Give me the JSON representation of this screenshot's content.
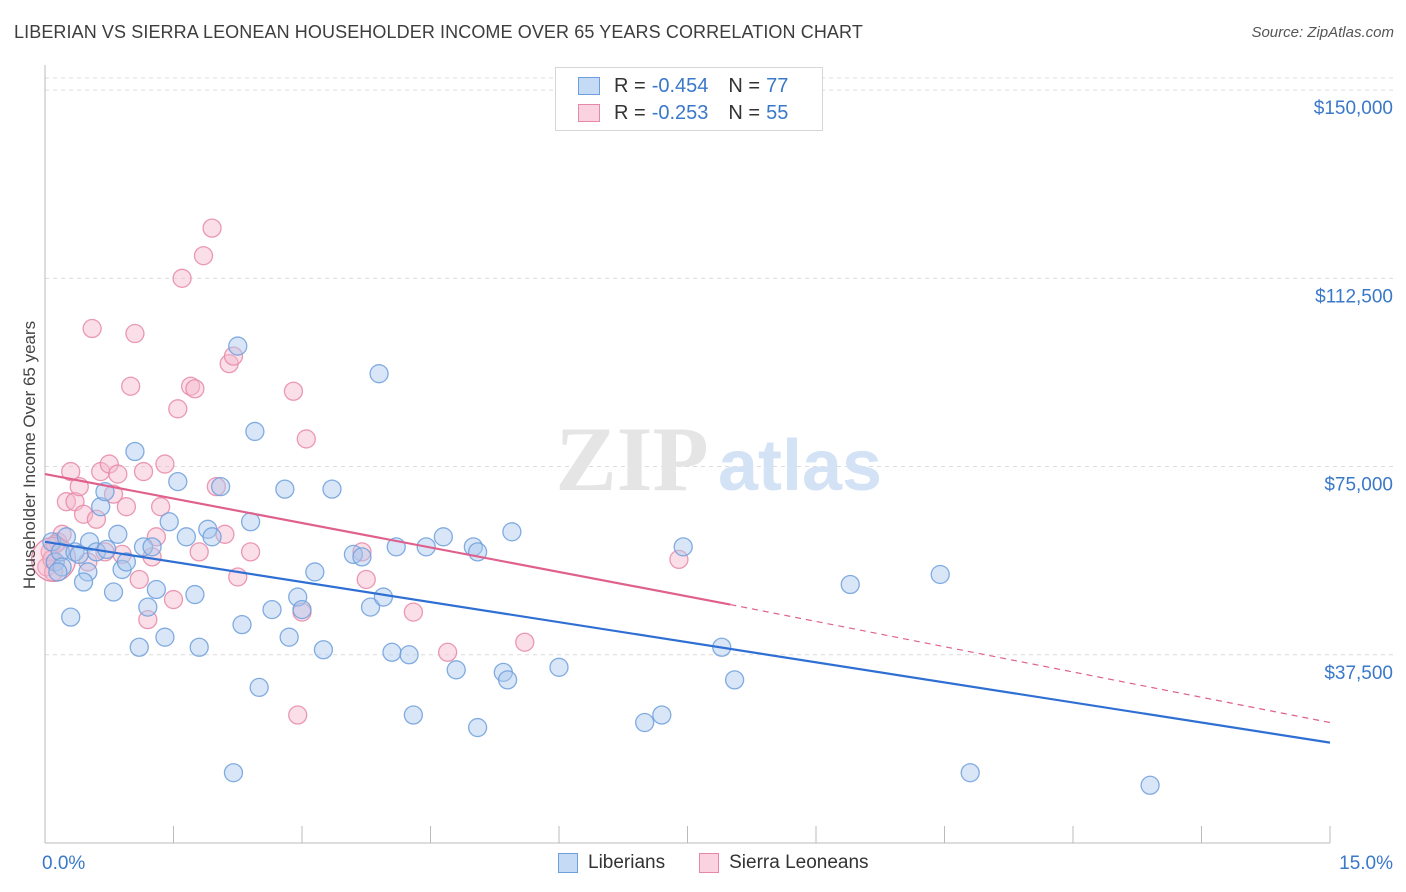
{
  "title": "LIBERIAN VS SIERRA LEONEAN HOUSEHOLDER INCOME OVER 65 YEARS CORRELATION CHART",
  "source": "Source: ZipAtlas.com",
  "watermark": {
    "zip": "ZIP",
    "atlas": "atlas"
  },
  "legend_top": {
    "rows": [
      {
        "r_label": "R =",
        "r_value": "-0.454",
        "n_label": "N =",
        "n_value": "77"
      },
      {
        "r_label": "R =",
        "r_value": "-0.253",
        "n_label": "N =",
        "n_value": "55"
      }
    ]
  },
  "legend_bottom": {
    "items": [
      "Liberians",
      "Sierra Leoneans"
    ]
  },
  "colors": {
    "blue_fill": "#a9c8ee",
    "blue_stroke": "#6e9fdc",
    "blue_line": "#2f6fd3",
    "pink_fill": "#f5b8cb",
    "pink_stroke": "#e888a7",
    "pink_line": "#e0608d",
    "tick_label": "#3a78c9",
    "grid": "#dcdcdc"
  },
  "chart_data": {
    "type": "scatter",
    "title": "LIBERIAN VS SIERRA LEONEAN HOUSEHOLDER INCOME OVER 65 YEARS CORRELATION CHART",
    "xlabel": "",
    "ylabel": "Householder Income Over 65 years",
    "xlim": [
      0,
      15
    ],
    "ylim": [
      0,
      155000
    ],
    "x_tick_labels": [
      "0.0%",
      "15.0%"
    ],
    "y_ticks": [
      37500,
      75000,
      112500,
      150000
    ],
    "y_tick_labels": [
      "$37,500",
      "$75,000",
      "$112,500",
      "$150,000"
    ],
    "grid": "horizontal dashed",
    "legend_position": "top-center and bottom-center",
    "series": [
      {
        "name": "Liberians",
        "r": -0.454,
        "n": 77,
        "trend": {
          "x": [
            0,
            15
          ],
          "y": [
            60000,
            20000
          ]
        },
        "points": [
          [
            0.08,
            60000
          ],
          [
            0.12,
            56000
          ],
          [
            0.18,
            58000
          ],
          [
            0.2,
            55000
          ],
          [
            0.25,
            61000
          ],
          [
            0.3,
            45000
          ],
          [
            0.35,
            58000
          ],
          [
            0.4,
            57500
          ],
          [
            0.5,
            54000
          ],
          [
            0.52,
            60000
          ],
          [
            0.6,
            58000
          ],
          [
            0.65,
            67000
          ],
          [
            0.7,
            70000
          ],
          [
            0.72,
            58500
          ],
          [
            0.8,
            50000
          ],
          [
            0.85,
            61500
          ],
          [
            0.9,
            54500
          ],
          [
            1.05,
            78000
          ],
          [
            1.1,
            39000
          ],
          [
            1.15,
            59000
          ],
          [
            1.2,
            47000
          ],
          [
            1.25,
            59000
          ],
          [
            1.3,
            50500
          ],
          [
            1.4,
            41000
          ],
          [
            1.45,
            64000
          ],
          [
            1.55,
            72000
          ],
          [
            1.65,
            61000
          ],
          [
            1.75,
            49500
          ],
          [
            1.8,
            39000
          ],
          [
            1.9,
            62500
          ],
          [
            1.95,
            61000
          ],
          [
            2.05,
            71000
          ],
          [
            2.2,
            14000
          ],
          [
            2.25,
            99000
          ],
          [
            2.3,
            43500
          ],
          [
            2.4,
            64000
          ],
          [
            2.45,
            82000
          ],
          [
            2.5,
            31000
          ],
          [
            2.65,
            46500
          ],
          [
            2.8,
            70500
          ],
          [
            2.85,
            41000
          ],
          [
            2.95,
            49000
          ],
          [
            3.0,
            46500
          ],
          [
            3.15,
            54000
          ],
          [
            3.25,
            38500
          ],
          [
            3.35,
            70500
          ],
          [
            3.6,
            57500
          ],
          [
            3.7,
            57000
          ],
          [
            3.8,
            47000
          ],
          [
            3.9,
            93500
          ],
          [
            3.95,
            49000
          ],
          [
            4.05,
            38000
          ],
          [
            4.1,
            59000
          ],
          [
            4.25,
            37500
          ],
          [
            4.3,
            25500
          ],
          [
            4.45,
            59000
          ],
          [
            4.65,
            61000
          ],
          [
            4.8,
            34500
          ],
          [
            5.0,
            59000
          ],
          [
            5.05,
            58000
          ],
          [
            5.05,
            23000
          ],
          [
            5.35,
            34000
          ],
          [
            5.4,
            32500
          ],
          [
            5.45,
            62000
          ],
          [
            6.0,
            35000
          ],
          [
            7.0,
            24000
          ],
          [
            7.2,
            25500
          ],
          [
            7.45,
            59000
          ],
          [
            7.9,
            39000
          ],
          [
            8.05,
            32500
          ],
          [
            9.4,
            51500
          ],
          [
            10.45,
            53500
          ],
          [
            10.8,
            14000
          ],
          [
            12.9,
            11500
          ],
          [
            0.15,
            54000
          ],
          [
            0.45,
            52000
          ],
          [
            0.95,
            56000
          ]
        ]
      },
      {
        "name": "Sierra Leoneans",
        "r": -0.253,
        "n": 55,
        "trend": {
          "x": [
            0,
            8.0
          ],
          "y": [
            73500,
            47500
          ]
        },
        "trend_extension": {
          "x": [
            8.0,
            15
          ],
          "y": [
            47500,
            24000
          ]
        },
        "points": [
          [
            0.02,
            55000
          ],
          [
            0.06,
            58000
          ],
          [
            0.1,
            54000
          ],
          [
            0.15,
            60000
          ],
          [
            0.2,
            61500
          ],
          [
            0.25,
            68000
          ],
          [
            0.3,
            74000
          ],
          [
            0.35,
            68000
          ],
          [
            0.4,
            71000
          ],
          [
            0.45,
            65500
          ],
          [
            0.5,
            56000
          ],
          [
            0.55,
            102500
          ],
          [
            0.6,
            64500
          ],
          [
            0.65,
            74000
          ],
          [
            0.7,
            58000
          ],
          [
            0.75,
            75500
          ],
          [
            0.8,
            69500
          ],
          [
            0.85,
            73500
          ],
          [
            0.9,
            57500
          ],
          [
            0.95,
            67000
          ],
          [
            1.0,
            91000
          ],
          [
            1.05,
            101500
          ],
          [
            1.1,
            52500
          ],
          [
            1.15,
            74000
          ],
          [
            1.2,
            44500
          ],
          [
            1.25,
            57000
          ],
          [
            1.35,
            67000
          ],
          [
            1.4,
            75500
          ],
          [
            1.5,
            48500
          ],
          [
            1.55,
            86500
          ],
          [
            1.6,
            112500
          ],
          [
            1.7,
            91000
          ],
          [
            1.75,
            90500
          ],
          [
            1.8,
            58000
          ],
          [
            1.85,
            117000
          ],
          [
            1.95,
            122500
          ],
          [
            2.0,
            71000
          ],
          [
            2.1,
            61500
          ],
          [
            2.15,
            95500
          ],
          [
            2.2,
            97000
          ],
          [
            2.25,
            53000
          ],
          [
            2.4,
            58000
          ],
          [
            2.9,
            90000
          ],
          [
            2.95,
            25500
          ],
          [
            3.0,
            46000
          ],
          [
            3.05,
            80500
          ],
          [
            3.7,
            58000
          ],
          [
            3.75,
            52500
          ],
          [
            4.3,
            46000
          ],
          [
            4.7,
            38000
          ],
          [
            5.6,
            40000
          ],
          [
            7.4,
            56500
          ],
          [
            0.12,
            59500
          ],
          [
            0.08,
            56500
          ],
          [
            1.3,
            61000
          ]
        ]
      }
    ]
  }
}
